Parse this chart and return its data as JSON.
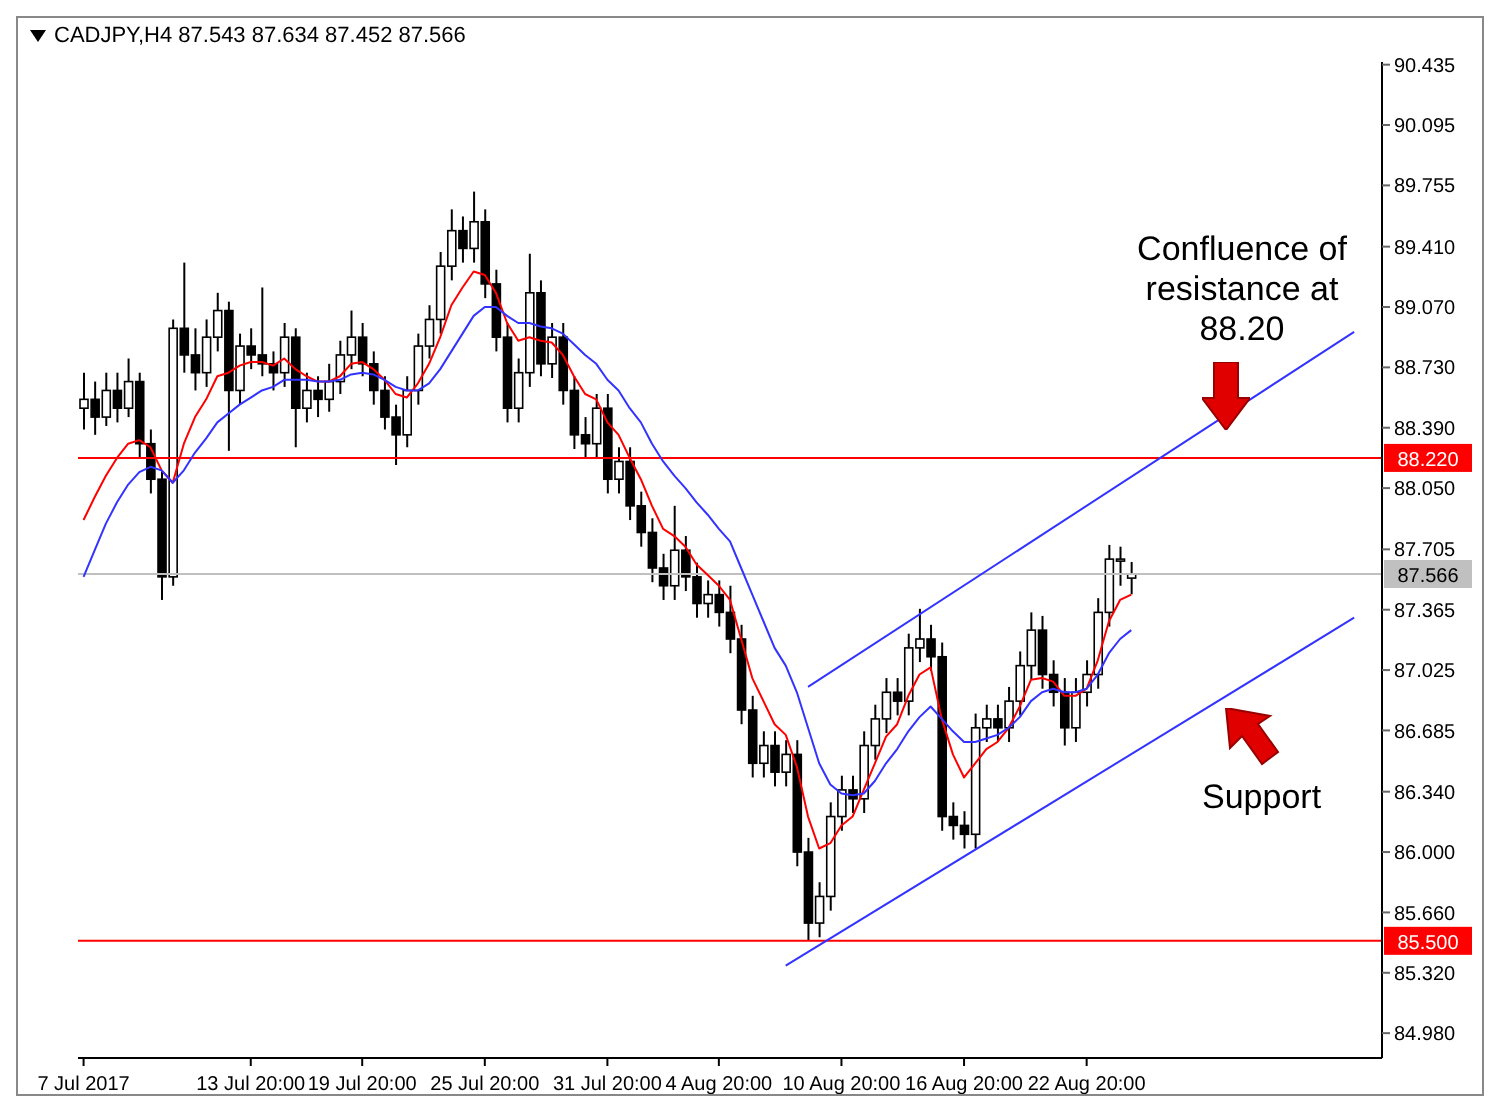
{
  "chart_data": {
    "type": "candlestick",
    "title": "CADJPY,H4  87.543 87.634 87.452 87.566",
    "color": "#000000",
    "categories": [
      "7 Jul 2017",
      null,
      null,
      null,
      null,
      null,
      null,
      null,
      null,
      null,
      null,
      null,
      null,
      null,
      null,
      "13 Jul 20:00",
      null,
      null,
      null,
      null,
      null,
      null,
      null,
      null,
      null,
      "19 Jul 20:00",
      null,
      null,
      null,
      null,
      null,
      null,
      null,
      null,
      null,
      null,
      "25 Jul 20:00",
      null,
      null,
      null,
      null,
      null,
      null,
      null,
      null,
      null,
      null,
      "31 Jul 20:00",
      null,
      null,
      null,
      null,
      null,
      null,
      null,
      null,
      null,
      "4 Aug 20:00",
      null,
      null,
      null,
      null,
      null,
      null,
      null,
      null,
      null,
      null,
      "10 Aug 20:00",
      null,
      null,
      null,
      null,
      null,
      null,
      null,
      null,
      null,
      null,
      "16 Aug 20:00",
      null,
      null,
      null,
      null,
      null,
      null,
      null,
      null,
      null,
      null,
      "22 Aug 20:00",
      null,
      null,
      null,
      null,
      null,
      null,
      null,
      null,
      null,
      null,
      null,
      null,
      null,
      null,
      null,
      null,
      null,
      null,
      null,
      null,
      null,
      null,
      null,
      null,
      null,
      null
    ],
    "ohlc": [
      [
        88.5,
        88.7,
        88.38,
        88.55
      ],
      [
        88.55,
        88.65,
        88.35,
        88.45
      ],
      [
        88.45,
        88.7,
        88.4,
        88.6
      ],
      [
        88.6,
        88.7,
        88.42,
        88.5
      ],
      [
        88.5,
        88.78,
        88.45,
        88.65
      ],
      [
        88.65,
        88.7,
        88.22,
        88.3
      ],
      [
        88.3,
        88.38,
        88.02,
        88.1
      ],
      [
        88.1,
        88.15,
        87.42,
        87.55
      ],
      [
        87.55,
        89.0,
        87.5,
        88.95
      ],
      [
        88.95,
        89.32,
        88.7,
        88.8
      ],
      [
        88.8,
        88.95,
        88.6,
        88.7
      ],
      [
        88.7,
        89.0,
        88.62,
        88.9
      ],
      [
        88.9,
        89.15,
        88.82,
        89.05
      ],
      [
        89.05,
        89.1,
        88.26,
        88.6
      ],
      [
        88.6,
        88.92,
        88.52,
        88.85
      ],
      [
        88.85,
        88.95,
        88.72,
        88.8
      ],
      [
        88.8,
        89.18,
        88.68,
        88.75
      ],
      [
        88.75,
        88.82,
        88.6,
        88.7
      ],
      [
        88.7,
        88.98,
        88.62,
        88.9
      ],
      [
        88.9,
        88.95,
        88.28,
        88.5
      ],
      [
        88.5,
        88.7,
        88.42,
        88.6
      ],
      [
        88.6,
        88.68,
        88.45,
        88.55
      ],
      [
        88.55,
        88.75,
        88.48,
        88.65
      ],
      [
        88.65,
        88.88,
        88.58,
        88.8
      ],
      [
        88.8,
        89.05,
        88.72,
        88.9
      ],
      [
        88.9,
        88.98,
        88.68,
        88.75
      ],
      [
        88.75,
        88.82,
        88.52,
        88.6
      ],
      [
        88.6,
        88.68,
        88.38,
        88.45
      ],
      [
        88.45,
        88.52,
        88.18,
        88.35
      ],
      [
        88.35,
        88.68,
        88.28,
        88.6
      ],
      [
        88.6,
        88.92,
        88.52,
        88.85
      ],
      [
        88.85,
        89.08,
        88.78,
        89.0
      ],
      [
        89.0,
        89.38,
        88.92,
        89.3
      ],
      [
        89.3,
        89.62,
        89.22,
        89.5
      ],
      [
        89.5,
        89.58,
        89.32,
        89.4
      ],
      [
        89.4,
        89.72,
        89.32,
        89.55
      ],
      [
        89.55,
        89.62,
        89.12,
        89.2
      ],
      [
        89.2,
        89.28,
        88.82,
        88.9
      ],
      [
        88.9,
        88.98,
        88.42,
        88.5
      ],
      [
        88.5,
        88.78,
        88.42,
        88.7
      ],
      [
        88.7,
        89.37,
        88.62,
        89.15
      ],
      [
        89.15,
        89.22,
        88.68,
        88.75
      ],
      [
        88.75,
        88.98,
        88.67,
        88.9
      ],
      [
        88.9,
        88.98,
        88.52,
        88.6
      ],
      [
        88.6,
        88.68,
        88.27,
        88.35
      ],
      [
        88.35,
        88.45,
        88.22,
        88.3
      ],
      [
        88.3,
        88.58,
        88.22,
        88.5
      ],
      [
        88.5,
        88.58,
        88.02,
        88.1
      ],
      [
        88.1,
        88.28,
        88.02,
        88.2
      ],
      [
        88.2,
        88.28,
        87.87,
        87.95
      ],
      [
        87.95,
        88.03,
        87.72,
        87.8
      ],
      [
        87.8,
        87.88,
        87.52,
        87.6
      ],
      [
        87.6,
        87.68,
        87.42,
        87.5
      ],
      [
        87.5,
        87.95,
        87.42,
        87.7
      ],
      [
        87.7,
        87.78,
        87.47,
        87.55
      ],
      [
        87.55,
        87.63,
        87.32,
        87.4
      ],
      [
        87.4,
        87.53,
        87.32,
        87.45
      ],
      [
        87.45,
        87.53,
        87.27,
        87.35
      ],
      [
        87.35,
        87.5,
        87.12,
        87.2
      ],
      [
        87.2,
        87.28,
        86.72,
        86.8
      ],
      [
        86.8,
        86.88,
        86.42,
        86.5
      ],
      [
        86.5,
        86.68,
        86.42,
        86.6
      ],
      [
        86.6,
        86.68,
        86.37,
        86.45
      ],
      [
        86.45,
        86.63,
        86.37,
        86.55
      ],
      [
        86.55,
        86.63,
        85.92,
        86.0
      ],
      [
        86.0,
        86.08,
        85.5,
        85.6
      ],
      [
        85.6,
        85.83,
        85.52,
        85.75
      ],
      [
        85.75,
        86.28,
        85.67,
        86.2
      ],
      [
        86.2,
        86.43,
        86.12,
        86.35
      ],
      [
        86.35,
        86.43,
        86.22,
        86.3
      ],
      [
        86.3,
        86.68,
        86.22,
        86.6
      ],
      [
        86.6,
        86.83,
        86.52,
        86.75
      ],
      [
        86.75,
        86.98,
        86.67,
        86.9
      ],
      [
        86.9,
        86.98,
        86.77,
        86.85
      ],
      [
        86.85,
        87.23,
        86.77,
        87.15
      ],
      [
        87.15,
        87.37,
        87.07,
        87.2
      ],
      [
        87.2,
        87.28,
        87.02,
        87.1
      ],
      [
        87.1,
        87.18,
        86.12,
        86.2
      ],
      [
        86.2,
        86.28,
        86.07,
        86.15
      ],
      [
        86.15,
        86.23,
        86.02,
        86.1
      ],
      [
        86.1,
        86.78,
        86.02,
        86.7
      ],
      [
        86.7,
        86.83,
        86.62,
        86.75
      ],
      [
        86.75,
        86.83,
        86.62,
        86.7
      ],
      [
        86.7,
        86.93,
        86.62,
        86.85
      ],
      [
        86.85,
        87.13,
        86.77,
        87.05
      ],
      [
        87.05,
        87.35,
        86.97,
        87.25
      ],
      [
        87.25,
        87.33,
        86.92,
        87.0
      ],
      [
        87.0,
        87.08,
        86.82,
        86.9
      ],
      [
        86.9,
        86.98,
        86.6,
        86.7
      ],
      [
        86.7,
        86.98,
        86.62,
        86.9
      ],
      [
        86.9,
        87.08,
        86.82,
        87.0
      ],
      [
        87.0,
        87.43,
        86.92,
        87.35
      ],
      [
        87.35,
        87.73,
        87.27,
        87.65
      ],
      [
        87.65,
        87.72,
        87.5,
        87.65
      ],
      [
        87.543,
        87.634,
        87.452,
        87.566
      ],
      null,
      null,
      null,
      null,
      null,
      null,
      null,
      null,
      null,
      null,
      null,
      null,
      null,
      null,
      null,
      null,
      null,
      null,
      null,
      null,
      null,
      null
    ],
    "series": [
      {
        "type": "line",
        "color": "#ff0000",
        "values": [
          87.87,
          88.0,
          88.12,
          88.22,
          88.3,
          88.32,
          88.28,
          88.15,
          88.08,
          88.3,
          88.45,
          88.55,
          88.68,
          88.7,
          88.74,
          88.76,
          88.76,
          88.74,
          88.78,
          88.72,
          88.68,
          88.65,
          88.65,
          88.68,
          88.75,
          88.76,
          88.72,
          88.66,
          88.58,
          88.56,
          88.64,
          88.75,
          88.9,
          89.08,
          89.18,
          89.27,
          89.25,
          89.15,
          88.98,
          88.88,
          88.9,
          88.88,
          88.87,
          88.8,
          88.68,
          88.58,
          88.55,
          88.42,
          88.35,
          88.22,
          88.1,
          87.95,
          87.82,
          87.78,
          87.72,
          87.62,
          87.56,
          87.5,
          87.42,
          87.2,
          86.98,
          86.85,
          86.72,
          86.66,
          86.48,
          86.2,
          86.02,
          86.05,
          86.15,
          86.2,
          86.35,
          86.5,
          86.65,
          86.72,
          86.88,
          87.0,
          87.04,
          86.75,
          86.55,
          86.42,
          86.5,
          86.58,
          86.62,
          86.7,
          86.82,
          86.97,
          86.98,
          86.96,
          86.88,
          86.88,
          86.92,
          87.08,
          87.3,
          87.42,
          87.45,
          null,
          null,
          null,
          null,
          null,
          null,
          null,
          null,
          null,
          null,
          null,
          null,
          null,
          null,
          null,
          null,
          null,
          null,
          null,
          null,
          null,
          null
        ]
      },
      {
        "type": "line",
        "color": "#3333ff",
        "values": [
          87.55,
          87.7,
          87.85,
          87.97,
          88.07,
          88.14,
          88.17,
          88.15,
          88.08,
          88.15,
          88.25,
          88.33,
          88.42,
          88.47,
          88.52,
          88.56,
          88.6,
          88.62,
          88.66,
          88.66,
          88.66,
          88.65,
          88.65,
          88.66,
          88.69,
          88.7,
          88.69,
          88.66,
          88.62,
          88.6,
          88.6,
          88.64,
          88.72,
          88.82,
          88.92,
          89.02,
          89.07,
          89.07,
          89.02,
          88.98,
          88.98,
          88.96,
          88.95,
          88.92,
          88.86,
          88.8,
          88.75,
          88.66,
          88.6,
          88.5,
          88.42,
          88.3,
          88.2,
          88.12,
          88.05,
          87.97,
          87.9,
          87.82,
          87.75,
          87.6,
          87.45,
          87.3,
          87.15,
          87.05,
          86.9,
          86.7,
          86.5,
          86.38,
          86.33,
          86.32,
          86.33,
          86.4,
          86.5,
          86.58,
          86.68,
          86.76,
          86.82,
          86.75,
          86.68,
          86.62,
          86.62,
          86.64,
          86.66,
          86.7,
          86.76,
          86.85,
          86.9,
          86.92,
          86.9,
          86.9,
          86.92,
          87.0,
          87.12,
          87.2,
          87.25,
          null,
          null,
          null,
          null,
          null,
          null,
          null,
          null,
          null,
          null,
          null,
          null,
          null,
          null,
          null,
          null,
          null,
          null,
          null,
          null,
          null,
          null
        ]
      },
      {
        "type": "line",
        "color": "#3333ff",
        "values": [
          null,
          null,
          null,
          null,
          null,
          null,
          null,
          null,
          null,
          null,
          null,
          null,
          null,
          null,
          null,
          null,
          null,
          null,
          null,
          null,
          null,
          null,
          null,
          null,
          null,
          null,
          null,
          null,
          null,
          null,
          null,
          null,
          null,
          null,
          null,
          null,
          null,
          null,
          null,
          null,
          null,
          null,
          null,
          null,
          null,
          null,
          null,
          null,
          null,
          null,
          null,
          null,
          null,
          null,
          null,
          null,
          null,
          null,
          null,
          null,
          null,
          null,
          null,
          null,
          null,
          86.93,
          null,
          null,
          null,
          null,
          null,
          null,
          null,
          null,
          null,
          null,
          null,
          null,
          null,
          null,
          null,
          null,
          null,
          null,
          null,
          null,
          null,
          null,
          null,
          null,
          null,
          null,
          null,
          null,
          null,
          null,
          null,
          null,
          null,
          null,
          null,
          null,
          null,
          null,
          null,
          null,
          null,
          null,
          null,
          null,
          null,
          null,
          null,
          null,
          88.93,
          null,
          null
        ]
      },
      {
        "type": "line",
        "color": "#3333ff",
        "values": [
          null,
          null,
          null,
          null,
          null,
          null,
          null,
          null,
          null,
          null,
          null,
          null,
          null,
          null,
          null,
          null,
          null,
          null,
          null,
          null,
          null,
          null,
          null,
          null,
          null,
          null,
          null,
          null,
          null,
          null,
          null,
          null,
          null,
          null,
          null,
          null,
          null,
          null,
          null,
          null,
          null,
          null,
          null,
          null,
          null,
          null,
          null,
          null,
          null,
          null,
          null,
          null,
          null,
          null,
          null,
          null,
          null,
          null,
          null,
          null,
          null,
          null,
          null,
          85.36,
          null,
          null,
          null,
          null,
          null,
          null,
          null,
          null,
          null,
          null,
          null,
          null,
          null,
          null,
          null,
          null,
          null,
          null,
          null,
          null,
          null,
          null,
          null,
          null,
          null,
          null,
          null,
          null,
          null,
          null,
          null,
          null,
          null,
          null,
          null,
          null,
          null,
          null,
          null,
          null,
          null,
          null,
          null,
          null,
          null,
          null,
          null,
          null,
          null,
          null,
          87.32,
          null,
          null
        ]
      }
    ],
    "ylim": [
      84.84,
      90.45
    ],
    "yticks": [
      {
        "value": 84.98,
        "label": "84.980"
      },
      {
        "value": 85.32,
        "label": "85.320"
      },
      {
        "value": 85.66,
        "label": "85.660"
      },
      {
        "value": 86.0,
        "label": "86.000"
      },
      {
        "value": 86.34,
        "label": "86.340"
      },
      {
        "value": 86.685,
        "label": "86.685"
      },
      {
        "value": 87.025,
        "label": "87.025"
      },
      {
        "value": 87.365,
        "label": "87.365"
      },
      {
        "value": 87.705,
        "label": "87.705"
      },
      {
        "value": 88.05,
        "label": "88.050"
      },
      {
        "value": 88.39,
        "label": "88.390"
      },
      {
        "value": 88.73,
        "label": "88.730"
      },
      {
        "value": 89.07,
        "label": "89.070"
      },
      {
        "value": 89.41,
        "label": "89.410"
      },
      {
        "value": 89.755,
        "label": "89.755"
      },
      {
        "value": 90.095,
        "label": "90.095"
      },
      {
        "value": 90.435,
        "label": "90.435"
      }
    ],
    "ref_lines": [
      {
        "axis": "y",
        "value": 88.22,
        "label": "88.220",
        "color": "#ff0000"
      },
      {
        "axis": "y",
        "value": 85.5,
        "label": "85.500",
        "color": "#ff0000"
      },
      {
        "axis": "y",
        "value": 87.566,
        "label": "87.566",
        "color": "#c0c0c0"
      }
    ],
    "annotations": [
      "Confluence of resistance at 88.20",
      "Support"
    ]
  }
}
